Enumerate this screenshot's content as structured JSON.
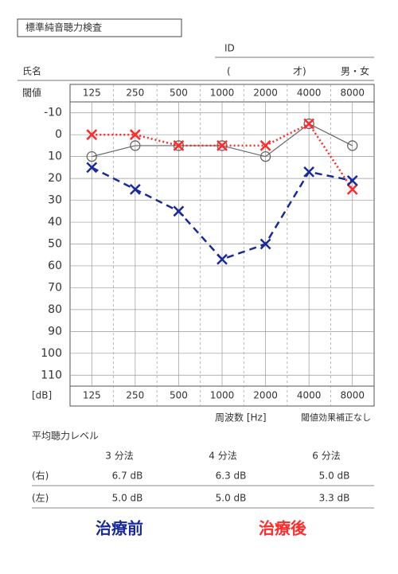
{
  "header": {
    "title": "標準純音聴力検査",
    "id_label": "ID",
    "name_label": "氏名",
    "age_open": "(",
    "age_close": "才)",
    "sex": "男・女"
  },
  "chart_data": {
    "type": "line",
    "corner_label": "閾値",
    "unit_label": "[dB]",
    "x_label": "周波数 [Hz]",
    "note": "閾値効果補正なし",
    "categories": [
      "125",
      "250",
      "500",
      "1000",
      "2000",
      "4000",
      "8000"
    ],
    "ylim": [
      -15,
      115
    ],
    "yticks": [
      -10,
      0,
      10,
      20,
      30,
      40,
      50,
      60,
      70,
      80,
      90,
      100,
      110
    ],
    "y_inverted": true,
    "grid": true,
    "series": [
      {
        "color": "#666666",
        "marker": "circle",
        "dash": "solid",
        "values": [
          10,
          5,
          5,
          5,
          10,
          -5,
          5
        ]
      },
      {
        "name": "治療後",
        "color": "#ff2a2a",
        "marker": "cross",
        "dash": "dotted",
        "values": [
          0,
          0,
          5,
          5,
          5,
          -5,
          25
        ]
      },
      {
        "name": "治療前",
        "color": "#1a2a9a",
        "marker": "cross",
        "dash": "dashed",
        "values": [
          15,
          25,
          35,
          57,
          50,
          17,
          21
        ]
      }
    ]
  },
  "average": {
    "title": "平均聴力レベル",
    "methods": [
      "3 分法",
      "4 分法",
      "6 分法"
    ],
    "rows": [
      {
        "label": "(右)",
        "values": [
          "6.7 dB",
          "6.3 dB",
          "5.0 dB"
        ]
      },
      {
        "label": "(左)",
        "values": [
          "5.0 dB",
          "5.0 dB",
          "3.3 dB"
        ]
      }
    ]
  }
}
